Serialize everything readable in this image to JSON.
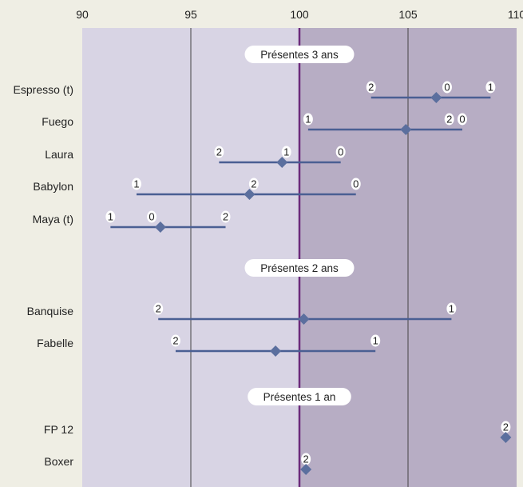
{
  "chart_data": {
    "type": "range",
    "xlim": [
      90,
      110
    ],
    "x_ticks": [
      90,
      95,
      100,
      105,
      110
    ],
    "reference_line": 100,
    "grid": "vertical",
    "colors": {
      "background": "#efeee4",
      "left_panel": "#d8d4e4",
      "right_panel": "#b7adc4",
      "grid": "#444444",
      "reference": "#6b2a7a",
      "series": "#4a5f93",
      "marker": "#5b6f9e"
    },
    "groups": [
      {
        "label": "Présentes 3 ans",
        "items": [
          {
            "name": "Espresso (t)",
            "mean": 106.3,
            "min": 103.3,
            "max": 108.8,
            "points": [
              {
                "label": "2",
                "x": 103.3
              },
              {
                "label": "0",
                "x": 106.8
              },
              {
                "label": "1",
                "x": 108.8
              }
            ]
          },
          {
            "name": "Fuego",
            "mean": 104.9,
            "min": 100.4,
            "max": 107.5,
            "points": [
              {
                "label": "1",
                "x": 100.4
              },
              {
                "label": "2",
                "x": 106.9
              },
              {
                "label": "0",
                "x": 107.5
              }
            ]
          },
          {
            "name": "Laura",
            "mean": 99.2,
            "min": 96.3,
            "max": 101.9,
            "points": [
              {
                "label": "2",
                "x": 96.3
              },
              {
                "label": "1",
                "x": 99.4
              },
              {
                "label": "0",
                "x": 101.9
              }
            ]
          },
          {
            "name": "Babylon",
            "mean": 97.7,
            "min": 92.5,
            "max": 102.6,
            "points": [
              {
                "label": "1",
                "x": 92.5
              },
              {
                "label": "2",
                "x": 97.9
              },
              {
                "label": "0",
                "x": 102.6
              }
            ]
          },
          {
            "name": "Maya (t)",
            "mean": 93.6,
            "min": 91.3,
            "max": 96.6,
            "points": [
              {
                "label": "1",
                "x": 91.3
              },
              {
                "label": "0",
                "x": 93.2
              },
              {
                "label": "2",
                "x": 96.6
              }
            ]
          }
        ]
      },
      {
        "label": "Présentes 2 ans",
        "items": [
          {
            "name": "Banquise",
            "mean": 100.2,
            "min": 93.5,
            "max": 107.0,
            "points": [
              {
                "label": "2",
                "x": 93.5
              },
              {
                "label": "1",
                "x": 107.0
              }
            ]
          },
          {
            "name": "Fabelle",
            "mean": 98.9,
            "min": 94.3,
            "max": 103.5,
            "points": [
              {
                "label": "2",
                "x": 94.3
              },
              {
                "label": "1",
                "x": 103.5
              }
            ]
          }
        ]
      },
      {
        "label": "Présentes 1 an",
        "items": [
          {
            "name": "FP 12",
            "mean": 109.5,
            "min": 109.5,
            "max": 109.5,
            "points": [
              {
                "label": "2",
                "x": 109.5
              }
            ]
          },
          {
            "name": "Boxer",
            "mean": 100.3,
            "min": 100.3,
            "max": 100.3,
            "points": [
              {
                "label": "2",
                "x": 100.3
              }
            ]
          }
        ]
      }
    ]
  }
}
